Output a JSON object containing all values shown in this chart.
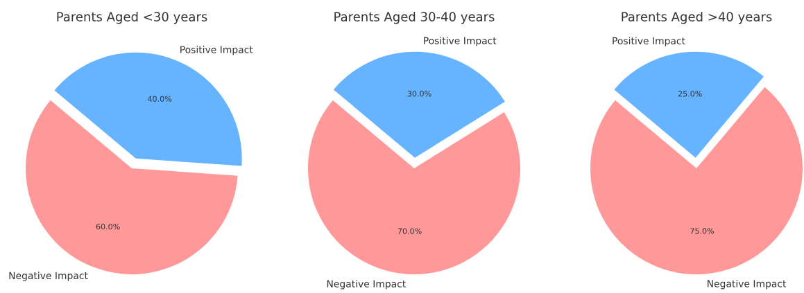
{
  "chart_data": [
    {
      "type": "pie",
      "title": "Parents Aged <30 years",
      "categories": [
        "Negative Impact",
        "Positive Impact"
      ],
      "values": [
        60,
        40
      ],
      "colors": [
        "#ff9999",
        "#66b3ff"
      ],
      "value_labels": [
        "60.0%",
        "40.0%"
      ]
    },
    {
      "type": "pie",
      "title": "Parents Aged 30-40 years",
      "categories": [
        "Negative Impact",
        "Positive Impact"
      ],
      "values": [
        70,
        30
      ],
      "colors": [
        "#ff9999",
        "#66b3ff"
      ],
      "value_labels": [
        "70.0%",
        "30.0%"
      ]
    },
    {
      "type": "pie",
      "title": "Parents Aged >40 years",
      "categories": [
        "Negative Impact",
        "Positive Impact"
      ],
      "values": [
        75,
        25
      ],
      "colors": [
        "#ff9999",
        "#66b3ff"
      ],
      "value_labels": [
        "75.0%",
        "25.0%"
      ]
    }
  ]
}
